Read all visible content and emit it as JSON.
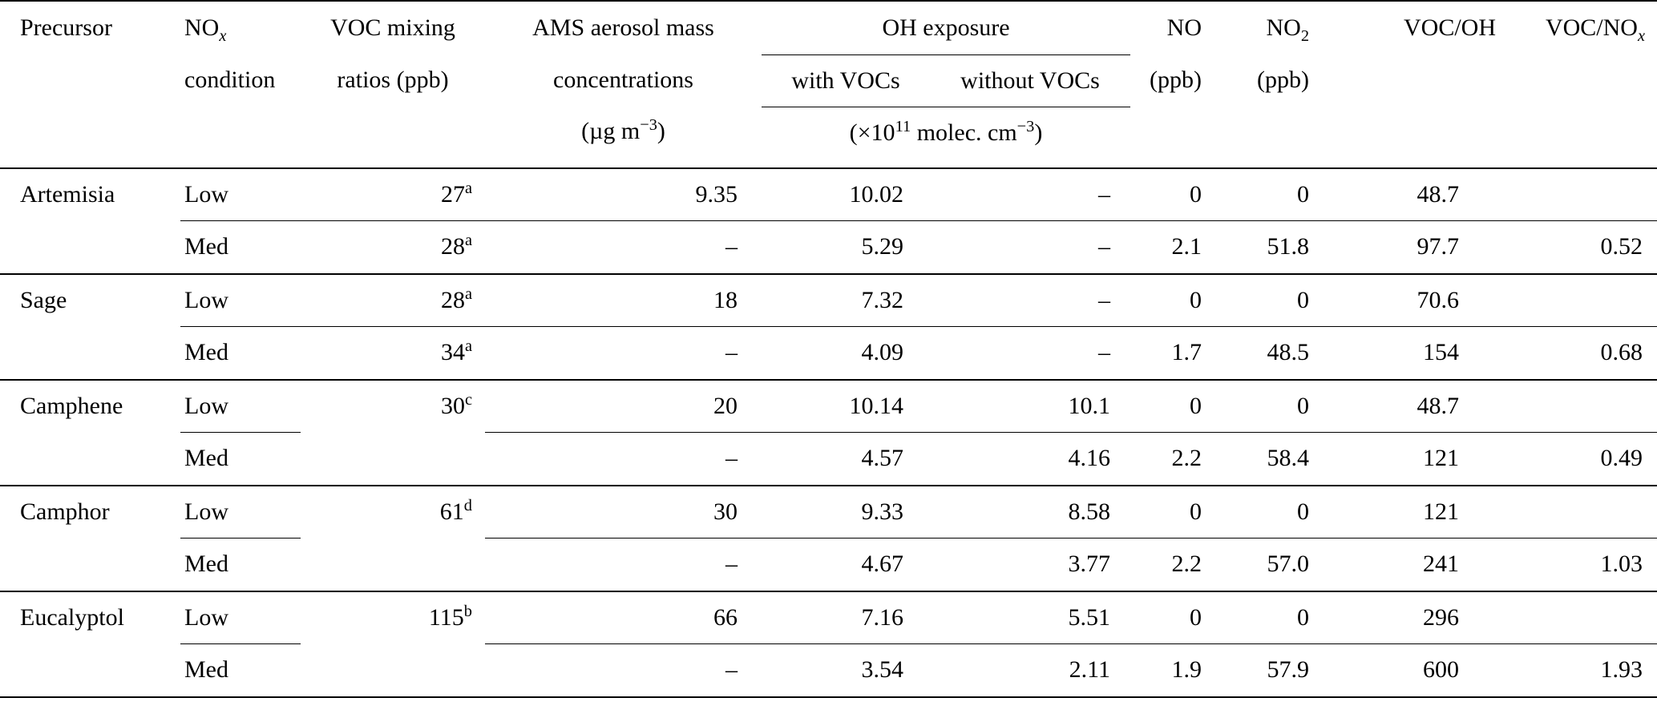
{
  "table": {
    "header": {
      "precursor": "Precursor",
      "nox": {
        "base": "NO",
        "sub": "x",
        "line2": "condition"
      },
      "voc": {
        "line1": "VOC mixing",
        "line2": "ratios (ppb)"
      },
      "ams": {
        "line1": "AMS aerosol mass",
        "line2": "concentrations",
        "unit_pre": "(µg m",
        "unit_sup": "−3",
        "unit_post": ")"
      },
      "oh": {
        "title": "OH exposure",
        "with_label": "with VOCs",
        "without_label": "without VOCs",
        "unit_pre": "(×10",
        "unit_sup1": "11",
        "unit_mid": " molec. cm",
        "unit_sup2": "−3",
        "unit_post": ")"
      },
      "no": {
        "line1": "NO",
        "line2": "(ppb)"
      },
      "no2": {
        "base": "NO",
        "sub": "2",
        "line2": "(ppb)"
      },
      "voc_oh": "VOC/OH",
      "voc_nox": {
        "base": "VOC/NO",
        "sub": "x"
      }
    },
    "empty_placeholder": "–",
    "groups": [
      {
        "precursor": "Artemisia",
        "voc_span": false,
        "rows": [
          {
            "condition": "Low",
            "voc": {
              "value": "27",
              "sup": "a"
            },
            "ams": "9.35",
            "oh_with": "10.02",
            "oh_without": "–",
            "no": "0",
            "no2": "0",
            "voc_oh": "48.7",
            "voc_nox": ""
          },
          {
            "condition": "Med",
            "voc": {
              "value": "28",
              "sup": "a"
            },
            "ams": "–",
            "oh_with": "5.29",
            "oh_without": "–",
            "no": "2.1",
            "no2": "51.8",
            "voc_oh": "97.7",
            "voc_nox": "0.52"
          }
        ]
      },
      {
        "precursor": "Sage",
        "voc_span": false,
        "rows": [
          {
            "condition": "Low",
            "voc": {
              "value": "28",
              "sup": "a"
            },
            "ams": "18",
            "oh_with": "7.32",
            "oh_without": "–",
            "no": "0",
            "no2": "0",
            "voc_oh": "70.6",
            "voc_nox": ""
          },
          {
            "condition": "Med",
            "voc": {
              "value": "34",
              "sup": "a"
            },
            "ams": "–",
            "oh_with": "4.09",
            "oh_without": "–",
            "no": "1.7",
            "no2": "48.5",
            "voc_oh": "154",
            "voc_nox": "0.68"
          }
        ]
      },
      {
        "precursor": "Camphene",
        "voc_span": true,
        "voc": {
          "value": "30",
          "sup": "c"
        },
        "rows": [
          {
            "condition": "Low",
            "ams": "20",
            "oh_with": "10.14",
            "oh_without": "10.1",
            "no": "0",
            "no2": "0",
            "voc_oh": "48.7",
            "voc_nox": ""
          },
          {
            "condition": "Med",
            "ams": "–",
            "oh_with": "4.57",
            "oh_without": "4.16",
            "no": "2.2",
            "no2": "58.4",
            "voc_oh": "121",
            "voc_nox": "0.49"
          }
        ]
      },
      {
        "precursor": "Camphor",
        "voc_span": true,
        "voc": {
          "value": "61",
          "sup": "d"
        },
        "rows": [
          {
            "condition": "Low",
            "ams": "30",
            "oh_with": "9.33",
            "oh_without": "8.58",
            "no": "0",
            "no2": "0",
            "voc_oh": "121",
            "voc_nox": ""
          },
          {
            "condition": "Med",
            "ams": "–",
            "oh_with": "4.67",
            "oh_without": "3.77",
            "no": "2.2",
            "no2": "57.0",
            "voc_oh": "241",
            "voc_nox": "1.03"
          }
        ]
      },
      {
        "precursor": "Eucalyptol",
        "voc_span": true,
        "voc": {
          "value": "115",
          "sup": "b"
        },
        "rows": [
          {
            "condition": "Low",
            "ams": "66",
            "oh_with": "7.16",
            "oh_without": "5.51",
            "no": "0",
            "no2": "0",
            "voc_oh": "296",
            "voc_nox": ""
          },
          {
            "condition": "Med",
            "ams": "–",
            "oh_with": "3.54",
            "oh_without": "2.11",
            "no": "1.9",
            "no2": "57.9",
            "voc_oh": "600",
            "voc_nox": "1.93"
          }
        ]
      }
    ]
  }
}
